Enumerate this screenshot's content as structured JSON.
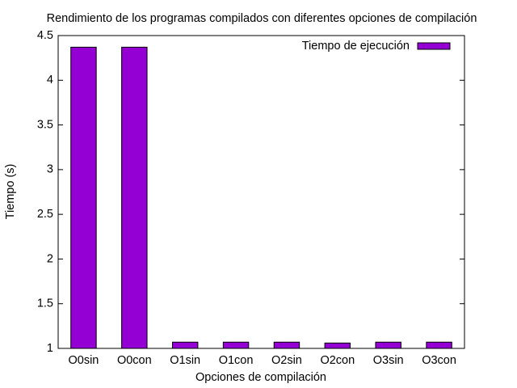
{
  "chart_data": {
    "type": "bar",
    "title": "Rendimiento de los programas compilados con diferentes opciones de compilación",
    "xlabel": "Opciones de compilación",
    "ylabel": "Tiempo (s)",
    "ylim": [
      1,
      4.5
    ],
    "yticks": [
      1,
      1.5,
      2,
      2.5,
      3,
      3.5,
      4,
      4.5
    ],
    "ytick_labels": [
      "1",
      "1.5",
      "2",
      "2.5",
      "3",
      "3.5",
      "4",
      "4.5"
    ],
    "categories": [
      "O0sin",
      "O0con",
      "O1sin",
      "O1con",
      "O2sin",
      "O2con",
      "O3sin",
      "O3con"
    ],
    "series": [
      {
        "name": "Tiempo de ejecución",
        "color": "#9400d3",
        "values": [
          4.37,
          4.37,
          1.07,
          1.07,
          1.07,
          1.06,
          1.07,
          1.07
        ]
      }
    ],
    "legend_position": "top-right",
    "grid": false
  }
}
